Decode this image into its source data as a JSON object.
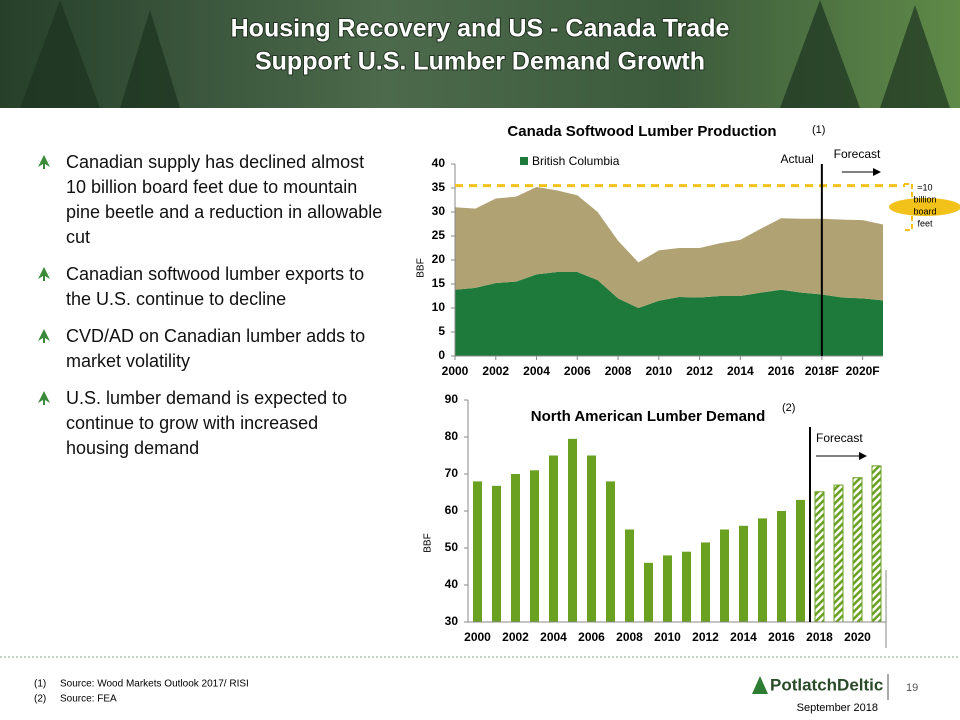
{
  "header": {
    "title_lines": [
      "Housing Recovery and US - Canada Trade",
      "Support U.S. Lumber Demand Growth"
    ]
  },
  "bullets": [
    "Canadian supply has declined almost 10 billion board feet due to mountain pine beetle and a reduction in allowable cut",
    "Canadian softwood lumber exports to the U.S. continue to decline",
    "CVD/AD on Canadian lumber adds to market volatility",
    "U.S. lumber demand is expected to continue to grow with increased housing demand"
  ],
  "chart_data": [
    {
      "type": "area",
      "stacked": true,
      "title": "Canada Softwood Lumber Production",
      "title_note": "(1)",
      "y_label": "BBF",
      "x": [
        2000,
        2001,
        2002,
        2003,
        2004,
        2005,
        2006,
        2007,
        2008,
        2009,
        2010,
        2011,
        2012,
        2013,
        2014,
        2015,
        2016,
        2017,
        2018,
        2019,
        2020,
        2021
      ],
      "xlim": [
        2000,
        2021
      ],
      "xticks": [
        2000,
        2002,
        2004,
        2006,
        2008,
        2010,
        2012,
        2014,
        2016,
        {
          "value": 2018,
          "label": "2018F"
        },
        {
          "value": 2020,
          "label": "2020F"
        }
      ],
      "ylim": [
        0,
        40
      ],
      "yticks": [
        0,
        5,
        10,
        15,
        20,
        25,
        30,
        35,
        40
      ],
      "series": [
        {
          "name": "British Columbia",
          "color": "#1d7a3a",
          "values": [
            13.8,
            14.2,
            15.2,
            15.5,
            17,
            17.5,
            17.5,
            15.8,
            12,
            10,
            11.5,
            12.3,
            12.2,
            12.5,
            12.5,
            13.2,
            13.8,
            13.2,
            12.8,
            12.2,
            12,
            11.6
          ]
        },
        {
          "color": "#b0a273",
          "values": [
            17.2,
            16.5,
            17.6,
            17.7,
            18.2,
            17,
            16,
            14.2,
            12,
            9.5,
            10.5,
            10.2,
            10.3,
            11,
            11.7,
            13.3,
            14.9,
            15.4,
            15.8,
            16.2,
            16.3,
            15.8
          ]
        }
      ],
      "reference_line": {
        "value": 35.5,
        "color": "#f2c21a"
      },
      "forecast_from": 2018,
      "actual_label": "Actual",
      "forecast_label": "Forecast",
      "gap_label_lines": [
        "≈10",
        "billion",
        "board",
        "feet"
      ]
    },
    {
      "type": "bar",
      "title": "North American Lumber Demand",
      "title_note": "(2)",
      "y_label": "BBF",
      "categories": [
        "2000",
        null,
        "2002",
        null,
        "2004",
        null,
        "2006",
        null,
        "2008",
        null,
        "2010",
        null,
        "2012",
        null,
        "2014",
        null,
        "2016",
        null,
        "2018",
        null,
        "2020",
        null
      ],
      "values": [
        68,
        66.8,
        70,
        71,
        75,
        79.5,
        75,
        68,
        55,
        46,
        48,
        49,
        51.5,
        55,
        56,
        58,
        60,
        63,
        65.2,
        67,
        69,
        72.2
      ],
      "hatched": [
        false,
        false,
        false,
        false,
        false,
        false,
        false,
        false,
        false,
        false,
        false,
        false,
        false,
        false,
        false,
        false,
        false,
        false,
        true,
        true,
        true,
        true
      ],
      "color": "#6aa121",
      "ylim": [
        30,
        90
      ],
      "yticks": [
        30,
        40,
        50,
        60,
        70,
        80,
        90
      ],
      "forecast_label": "Forecast"
    }
  ],
  "footnotes": [
    {
      "marker": "(1)",
      "text": "Source: Wood Markets Outlook 2017/ RISI"
    },
    {
      "marker": "(2)",
      "text": "Source: FEA"
    }
  ],
  "footer": {
    "logo": "PotlatchDeltic",
    "page": 19,
    "date": "September 2018"
  }
}
